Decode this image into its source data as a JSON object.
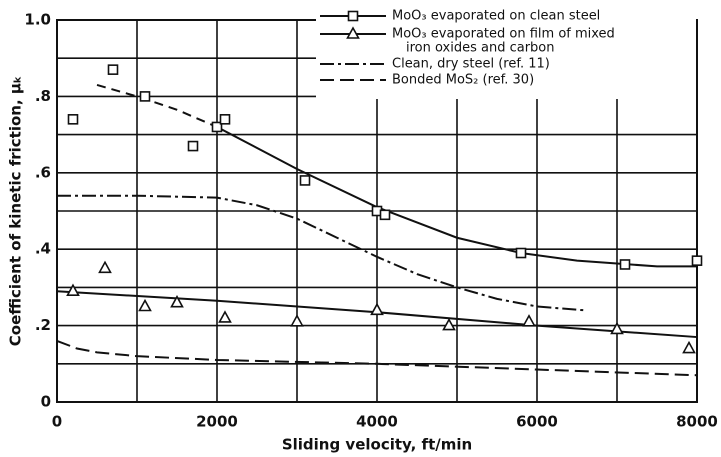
{
  "chart_data": {
    "type": "scatter",
    "xlabel": "Sliding velocity, ft/min",
    "ylabel": "Coefficient of kinetic friction, μₖ",
    "xlim": [
      0,
      8000
    ],
    "ylim": [
      0,
      1
    ],
    "xticks": [
      0,
      2000,
      4000,
      6000,
      8000
    ],
    "xminor": [
      1000,
      3000,
      5000,
      7000
    ],
    "yticks": [
      0,
      {
        "value": 0.2,
        "label": ".2"
      },
      {
        "value": 0.4,
        "label": ".4"
      },
      {
        "value": 0.6,
        "label": ".6"
      },
      {
        "value": 0.8,
        "label": ".8"
      },
      {
        "value": 1,
        "label": "1.0"
      }
    ],
    "yminor": [
      0.1,
      0.3,
      0.5,
      0.7,
      0.9
    ],
    "grid": true,
    "legend": "upper right",
    "color": "#111111",
    "series": [
      {
        "name": [
          "MoO₃ evaporated on clean steel"
        ],
        "marker": "square",
        "dash": "none",
        "x": [
          200,
          700,
          1100,
          1700,
          2000,
          2100,
          3100,
          4000,
          4100,
          5800,
          7100,
          8000
        ],
        "values": [
          0.74,
          0.87,
          0.8,
          0.67,
          0.72,
          0.74,
          0.58,
          0.5,
          0.49,
          0.39,
          0.36,
          0.37
        ],
        "curves": [
          {
            "dash": "9,6",
            "x": [
              500,
              1000,
              1500,
              2000
            ],
            "values": [
              0.83,
              0.8,
              0.765,
              0.72
            ]
          },
          {
            "dash": "none",
            "x": [
              2000,
              3000,
              4000,
              5000,
              5800,
              6500,
              7500,
              8000
            ],
            "values": [
              0.72,
              0.61,
              0.51,
              0.43,
              0.39,
              0.37,
              0.355,
              0.355
            ]
          }
        ]
      },
      {
        "name": [
          "MoO₃ evaporated on film of mixed",
          "iron oxides and carbon"
        ],
        "marker": "triangle",
        "dash": "none",
        "x": [
          200,
          600,
          1100,
          1500,
          2100,
          3000,
          4000,
          4900,
          5900,
          7000,
          7900
        ],
        "values": [
          0.29,
          0.35,
          0.25,
          0.26,
          0.22,
          0.21,
          0.24,
          0.2,
          0.21,
          0.19,
          0.14
        ],
        "curves": [
          {
            "dash": "none",
            "x": [
              0,
              2000,
              4000,
              6000,
              8000
            ],
            "values": [
              0.29,
              0.265,
              0.235,
              0.2,
              0.17
            ]
          }
        ]
      },
      {
        "name": [
          "Clean, dry steel (ref. 11)"
        ],
        "dash": "14,4,3,4",
        "curves": [
          {
            "dash": "14,4,3,4",
            "x": [
              0,
              1000,
              2000,
              2500,
              3000,
              3500,
              4000,
              4500,
              5000,
              5500,
              6000,
              6600
            ],
            "values": [
              0.54,
              0.54,
              0.535,
              0.515,
              0.48,
              0.43,
              0.38,
              0.335,
              0.3,
              0.27,
              0.25,
              0.24
            ]
          }
        ]
      },
      {
        "name": [
          "Bonded MoS₂ (ref. 30)"
        ],
        "dash": "14,6",
        "curves": [
          {
            "dash": "14,6",
            "x": [
              0,
              250,
              500,
              1000,
              2000,
              4000,
              6000,
              8000
            ],
            "values": [
              0.16,
              0.14,
              0.13,
              0.12,
              0.11,
              0.1,
              0.085,
              0.07
            ]
          }
        ]
      }
    ]
  }
}
